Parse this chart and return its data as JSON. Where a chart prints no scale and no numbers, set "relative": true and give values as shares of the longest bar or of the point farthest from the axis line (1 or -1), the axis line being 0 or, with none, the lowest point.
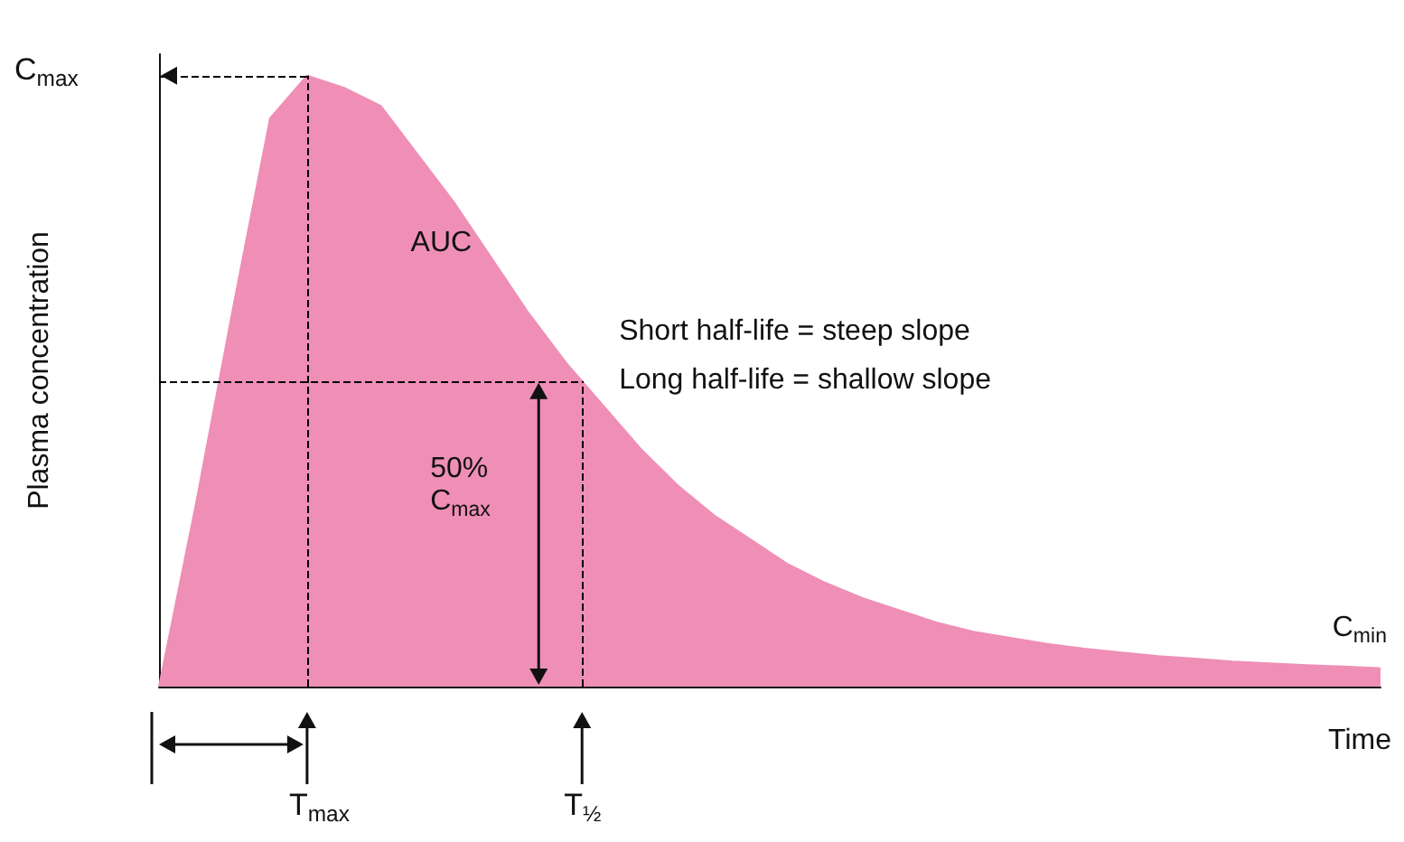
{
  "chart_data": {
    "type": "area",
    "relative": true,
    "xlabel": "Time",
    "ylabel": "Plasma concentration",
    "color": "#ef8fb6",
    "marker": "none",
    "categories": [
      null,
      null,
      null,
      null,
      null,
      null,
      null,
      null,
      null,
      null,
      null,
      null,
      null,
      null,
      null,
      null,
      null,
      null,
      null,
      null,
      null,
      null,
      null,
      null,
      null,
      null,
      null,
      null,
      null,
      null,
      null,
      null,
      null,
      null
    ],
    "values": [
      0,
      0.3,
      0.62,
      0.93,
      1,
      0.98,
      0.95,
      0.87,
      0.79,
      0.7,
      0.61,
      0.53,
      0.46,
      0.39,
      0.33,
      0.28,
      0.24,
      0.2,
      0.17,
      0.145,
      0.125,
      0.105,
      0.09,
      0.08,
      0.07,
      0.062,
      0.056,
      0.05,
      0.046,
      0.041,
      0.038,
      0.035,
      0.033,
      0.03
    ],
    "ref_lines": [
      {
        "axis": "y",
        "value": 1,
        "label": "C$_{max}$",
        "line_style": "dashed"
      },
      {
        "axis": "y",
        "value": 0.5,
        "label": "50% C$_{max}$",
        "line_style": "dashed"
      }
    ],
    "annotations": [
      "AUC",
      "T$_{max}$",
      "T$_{½}$",
      "C$_{min}$",
      "Short half-life = steep slope",
      "Long half-life = shallow slope"
    ]
  }
}
